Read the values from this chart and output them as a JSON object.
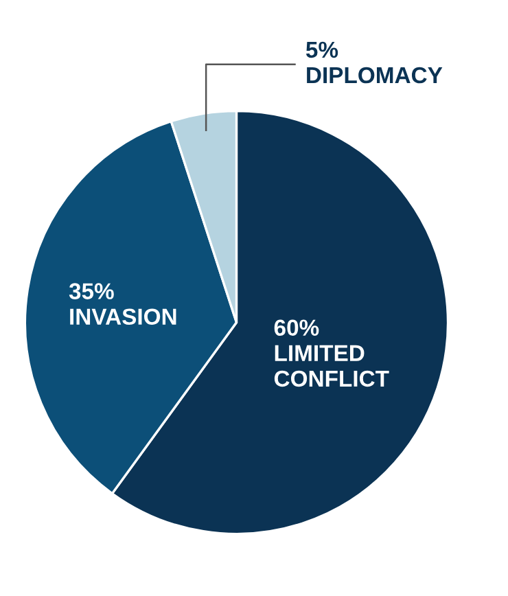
{
  "chart_data": {
    "type": "pie",
    "categories": [
      "LIMITED CONFLICT",
      "INVASION",
      "DIPLOMACY"
    ],
    "values": [
      60,
      35,
      5
    ],
    "colors": [
      "#0b3354",
      "#0c4f78",
      "#b5d3e0"
    ],
    "value_labels": [
      "60%",
      "35%",
      "5%"
    ]
  }
}
